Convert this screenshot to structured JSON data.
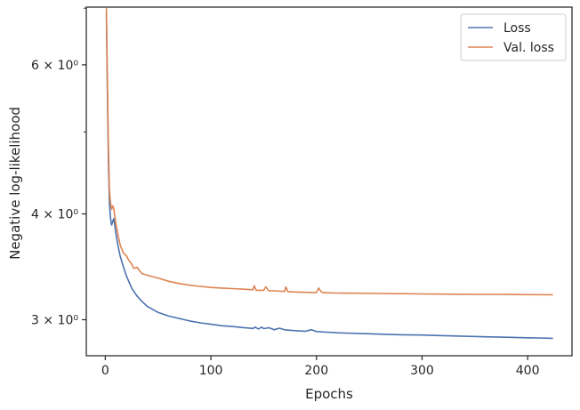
{
  "chart_data": {
    "type": "line",
    "title": "",
    "xlabel": "Epochs",
    "ylabel": "Negative log-likelihood",
    "xlim": [
      -18,
      442
    ],
    "ylim": [
      2.72,
      7.02
    ],
    "yscale": "log",
    "grid": false,
    "legend_position": "top-right",
    "x_ticks": [
      0,
      100,
      200,
      300,
      400
    ],
    "x_tick_labels": [
      "0",
      "100",
      "200",
      "300",
      "400"
    ],
    "y_major_ticks": [
      3,
      4,
      6
    ],
    "y_major_labels": [
      "3 × 10⁰",
      "4 × 10⁰",
      "6 × 10⁰"
    ],
    "y_minor_ticks": [
      5,
      7
    ],
    "series": [
      {
        "name": "Loss",
        "color": "#4c72b0",
        "x": [
          1,
          2,
          3,
          4,
          5,
          6,
          7,
          8,
          10,
          12,
          14,
          17,
          20,
          25,
          30,
          35,
          40,
          50,
          60,
          70,
          80,
          90,
          100,
          110,
          120,
          130,
          140,
          142,
          145,
          148,
          150,
          155,
          160,
          165,
          170,
          180,
          190,
          195,
          200,
          210,
          220,
          240,
          260,
          280,
          300,
          320,
          340,
          360,
          380,
          400,
          410,
          424
        ],
        "y": [
          6.9,
          5.6,
          4.6,
          4.1,
          3.95,
          3.88,
          3.92,
          3.95,
          3.8,
          3.67,
          3.57,
          3.47,
          3.38,
          3.27,
          3.2,
          3.15,
          3.11,
          3.06,
          3.03,
          3.01,
          2.99,
          2.975,
          2.963,
          2.952,
          2.945,
          2.937,
          2.93,
          2.94,
          2.925,
          2.94,
          2.928,
          2.935,
          2.92,
          2.932,
          2.918,
          2.912,
          2.908,
          2.92,
          2.905,
          2.9,
          2.895,
          2.89,
          2.885,
          2.88,
          2.878,
          2.873,
          2.868,
          2.864,
          2.86,
          2.856,
          2.855,
          2.852
        ]
      },
      {
        "name": "Val. loss",
        "color": "#dd8452",
        "x": [
          1,
          2,
          3,
          4,
          5,
          6,
          7,
          8,
          9,
          10,
          12,
          14,
          17,
          20,
          22,
          25,
          27,
          30,
          33,
          35,
          40,
          50,
          60,
          70,
          80,
          90,
          100,
          110,
          120,
          130,
          140,
          141,
          143,
          150,
          152,
          155,
          160,
          170,
          171,
          173,
          180,
          190,
          200,
          202,
          205,
          210,
          220,
          240,
          260,
          280,
          300,
          320,
          340,
          360,
          380,
          400,
          410,
          424
        ],
        "y": [
          7.0,
          5.8,
          4.8,
          4.25,
          4.12,
          4.05,
          4.09,
          4.06,
          3.98,
          3.9,
          3.78,
          3.68,
          3.6,
          3.57,
          3.53,
          3.49,
          3.45,
          3.46,
          3.42,
          3.4,
          3.385,
          3.36,
          3.33,
          3.31,
          3.295,
          3.285,
          3.275,
          3.27,
          3.265,
          3.26,
          3.255,
          3.29,
          3.25,
          3.25,
          3.28,
          3.245,
          3.245,
          3.24,
          3.28,
          3.238,
          3.235,
          3.232,
          3.23,
          3.27,
          3.232,
          3.228,
          3.226,
          3.224,
          3.222,
          3.22,
          3.218,
          3.216,
          3.215,
          3.214,
          3.213,
          3.212,
          3.212,
          3.21
        ]
      }
    ]
  }
}
